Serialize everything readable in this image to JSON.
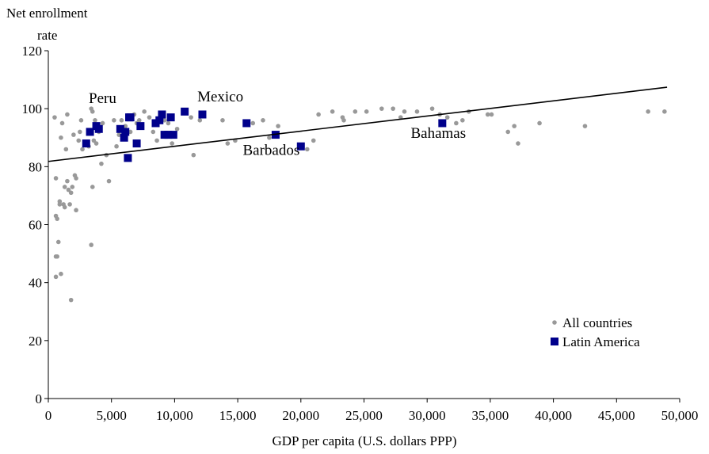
{
  "chart_data": {
    "type": "scatter",
    "title": "",
    "xlabel": "GDP per capita (U.S. dollars PPP)",
    "ylabel_lines": [
      "Net enrollment",
      "rate"
    ],
    "xlim": [
      0,
      50000
    ],
    "ylim": [
      0,
      120
    ],
    "x_ticks": [
      0,
      5000,
      10000,
      15000,
      20000,
      25000,
      30000,
      35000,
      40000,
      45000,
      50000
    ],
    "x_tick_labels": [
      "0",
      "5,000",
      "10,000",
      "15,000",
      "20,000",
      "25,000",
      "30,000",
      "35,000",
      "40,000",
      "45,000",
      "50,000"
    ],
    "y_ticks": [
      0,
      20,
      40,
      60,
      80,
      100,
      120
    ],
    "y_tick_labels": [
      "0",
      "20",
      "40",
      "60",
      "80",
      "100",
      "120"
    ],
    "grid": false,
    "legend_position": "bottom-right",
    "colors": {
      "all": "#999999",
      "latin": "#00008B",
      "trend": "#000000"
    },
    "trendline": {
      "x": [
        0,
        49000
      ],
      "y": [
        81.8,
        107.4
      ]
    },
    "series": [
      {
        "name": "All countries",
        "marker": "circle",
        "points": [
          [
            500,
            97
          ],
          [
            600,
            76
          ],
          [
            600,
            63
          ],
          [
            700,
            62
          ],
          [
            600,
            49
          ],
          [
            700,
            49
          ],
          [
            600,
            42
          ],
          [
            1000,
            43
          ],
          [
            800,
            54
          ],
          [
            900,
            68
          ],
          [
            900,
            67
          ],
          [
            1000,
            90
          ],
          [
            1100,
            95
          ],
          [
            1200,
            67
          ],
          [
            1300,
            73
          ],
          [
            1300,
            66
          ],
          [
            1400,
            86
          ],
          [
            1500,
            75
          ],
          [
            1500,
            98
          ],
          [
            1600,
            72
          ],
          [
            1700,
            67
          ],
          [
            1800,
            71
          ],
          [
            1800,
            34
          ],
          [
            1900,
            73
          ],
          [
            2000,
            91
          ],
          [
            2100,
            77
          ],
          [
            2200,
            76
          ],
          [
            2200,
            65
          ],
          [
            2400,
            89
          ],
          [
            2500,
            92
          ],
          [
            2600,
            96
          ],
          [
            2700,
            86
          ],
          [
            3000,
            88
          ],
          [
            3200,
            87
          ],
          [
            3400,
            100
          ],
          [
            3500,
            99
          ],
          [
            3500,
            73
          ],
          [
            3600,
            89
          ],
          [
            3700,
            96
          ],
          [
            3800,
            88
          ],
          [
            3400,
            53
          ],
          [
            4000,
            92
          ],
          [
            4200,
            81
          ],
          [
            4300,
            95
          ],
          [
            4600,
            84
          ],
          [
            4800,
            75
          ],
          [
            5200,
            96
          ],
          [
            5400,
            87
          ],
          [
            5600,
            91
          ],
          [
            5800,
            96
          ],
          [
            6100,
            94
          ],
          [
            6500,
            92
          ],
          [
            6800,
            98
          ],
          [
            7000,
            95
          ],
          [
            7200,
            96
          ],
          [
            7600,
            99
          ],
          [
            8000,
            97
          ],
          [
            8300,
            92
          ],
          [
            8600,
            89
          ],
          [
            8900,
            98
          ],
          [
            9200,
            96
          ],
          [
            9500,
            95
          ],
          [
            9800,
            88
          ],
          [
            10200,
            93
          ],
          [
            10800,
            99
          ],
          [
            11300,
            97
          ],
          [
            11500,
            84
          ],
          [
            12000,
            96
          ],
          [
            13800,
            96
          ],
          [
            14200,
            88
          ],
          [
            14800,
            89
          ],
          [
            16200,
            95
          ],
          [
            17000,
            96
          ],
          [
            17500,
            90
          ],
          [
            18200,
            94
          ],
          [
            20500,
            86
          ],
          [
            21000,
            89
          ],
          [
            21400,
            98
          ],
          [
            22500,
            99
          ],
          [
            23300,
            97
          ],
          [
            23400,
            96
          ],
          [
            24300,
            99
          ],
          [
            25200,
            99
          ],
          [
            26400,
            100
          ],
          [
            27300,
            100
          ],
          [
            27900,
            97
          ],
          [
            28200,
            99
          ],
          [
            29200,
            99
          ],
          [
            30400,
            100
          ],
          [
            31000,
            98
          ],
          [
            31600,
            97
          ],
          [
            32300,
            95
          ],
          [
            32800,
            96
          ],
          [
            33300,
            99
          ],
          [
            34800,
            98
          ],
          [
            35100,
            98
          ],
          [
            36400,
            92
          ],
          [
            36900,
            94
          ],
          [
            37200,
            88
          ],
          [
            38900,
            95
          ],
          [
            42500,
            94
          ],
          [
            47500,
            99
          ],
          [
            48800,
            99
          ]
        ]
      },
      {
        "name": "Latin America",
        "marker": "square",
        "points": [
          [
            3000,
            88
          ],
          [
            3300,
            92
          ],
          [
            3800,
            94
          ],
          [
            4000,
            93
          ],
          [
            5700,
            93
          ],
          [
            6000,
            90
          ],
          [
            6100,
            92
          ],
          [
            6400,
            97
          ],
          [
            6500,
            97
          ],
          [
            6300,
            83
          ],
          [
            7000,
            88
          ],
          [
            7300,
            94
          ],
          [
            8500,
            95
          ],
          [
            8800,
            96
          ],
          [
            9200,
            91
          ],
          [
            9500,
            91
          ],
          [
            9900,
            91
          ],
          [
            9000,
            98
          ],
          [
            9700,
            97
          ],
          [
            10800,
            99
          ],
          [
            12200,
            98
          ],
          [
            15700,
            95
          ],
          [
            18000,
            91
          ],
          [
            20000,
            87
          ],
          [
            31200,
            95
          ]
        ]
      }
    ],
    "annotations": [
      {
        "text": "Peru",
        "x": 3200,
        "y": 102
      },
      {
        "text": "Mexico",
        "x": 11800,
        "y": 102.5
      },
      {
        "text": "Barbados",
        "x": 15400,
        "y": 84
      },
      {
        "text": "Bahamas",
        "x": 28700,
        "y": 90
      }
    ]
  }
}
